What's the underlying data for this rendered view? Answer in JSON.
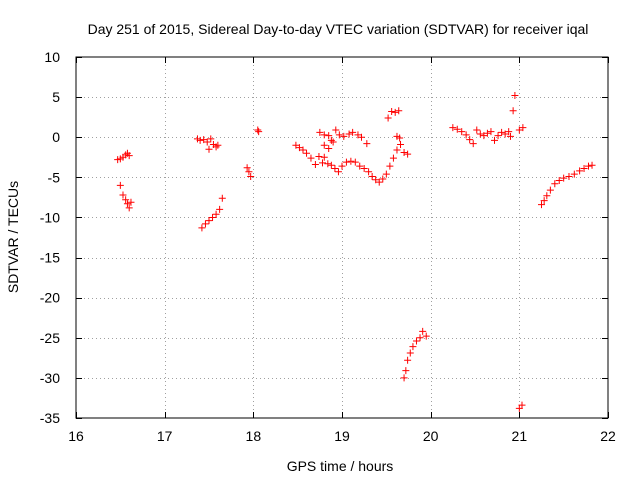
{
  "chart_data": {
    "type": "scatter",
    "title": "Day 251 of 2015, Sidereal Day-to-day VTEC variation (SDTVAR) for receiver iqal",
    "xlabel": "GPS time / hours",
    "ylabel": "SDTVAR / TECUs",
    "xlim": [
      16,
      22
    ],
    "ylim": [
      -35,
      10
    ],
    "xticks": [
      16,
      17,
      18,
      19,
      20,
      21,
      22
    ],
    "xtick_labels": [
      "16",
      "17",
      "18",
      "19",
      "20",
      "21",
      "22"
    ],
    "yticks": [
      10,
      5,
      0,
      -5,
      -10,
      -15,
      -20,
      -25,
      -30,
      -35
    ],
    "ytick_labels": [
      "10",
      "5",
      "0",
      "-5",
      "-10",
      "-15",
      "-20",
      "-25",
      "-30",
      "-35"
    ],
    "grid": true,
    "marker": "+",
    "color": "#ff0000",
    "series": [
      {
        "name": "iqal",
        "points": [
          [
            16.47,
            -2.8
          ],
          [
            16.5,
            -2.7
          ],
          [
            16.53,
            -2.5
          ],
          [
            16.56,
            -2.2
          ],
          [
            16.58,
            -2.0
          ],
          [
            16.6,
            -2.3
          ],
          [
            16.5,
            -6.0
          ],
          [
            16.53,
            -7.2
          ],
          [
            16.56,
            -7.8
          ],
          [
            16.58,
            -8.3
          ],
          [
            16.6,
            -8.8
          ],
          [
            16.62,
            -8.1
          ],
          [
            17.37,
            -0.2
          ],
          [
            17.4,
            -0.4
          ],
          [
            17.44,
            -0.3
          ],
          [
            17.48,
            -0.6
          ],
          [
            17.5,
            -1.5
          ],
          [
            17.52,
            -0.2
          ],
          [
            17.55,
            -0.9
          ],
          [
            17.58,
            -1.2
          ],
          [
            17.6,
            -1.0
          ],
          [
            17.42,
            -11.3
          ],
          [
            17.46,
            -10.8
          ],
          [
            17.5,
            -10.4
          ],
          [
            17.54,
            -10.0
          ],
          [
            17.58,
            -9.6
          ],
          [
            17.62,
            -9.0
          ],
          [
            17.65,
            -7.6
          ],
          [
            17.93,
            -3.8
          ],
          [
            17.95,
            -4.3
          ],
          [
            17.97,
            -4.9
          ],
          [
            18.05,
            0.9
          ],
          [
            18.06,
            0.7
          ],
          [
            18.48,
            -1.0
          ],
          [
            18.52,
            -1.3
          ],
          [
            18.56,
            -1.6
          ],
          [
            18.6,
            -2.0
          ],
          [
            18.65,
            -2.6
          ],
          [
            18.7,
            -3.4
          ],
          [
            18.74,
            -2.4
          ],
          [
            18.78,
            -3.2
          ],
          [
            18.8,
            -2.5
          ],
          [
            18.84,
            -3.3
          ],
          [
            18.88,
            -3.5
          ],
          [
            18.92,
            -3.9
          ],
          [
            18.96,
            -4.3
          ],
          [
            19.0,
            -3.6
          ],
          [
            19.05,
            -3.1
          ],
          [
            19.1,
            -3.0
          ],
          [
            19.15,
            -3.1
          ],
          [
            19.2,
            -3.6
          ],
          [
            19.25,
            -3.9
          ],
          [
            19.3,
            -4.3
          ],
          [
            19.34,
            -4.9
          ],
          [
            19.38,
            -5.3
          ],
          [
            19.42,
            -5.6
          ],
          [
            19.46,
            -5.2
          ],
          [
            19.5,
            -4.6
          ],
          [
            19.54,
            -3.6
          ],
          [
            19.58,
            -2.6
          ],
          [
            19.62,
            -1.6
          ],
          [
            19.66,
            -0.9
          ],
          [
            19.7,
            -1.9
          ],
          [
            19.74,
            -2.1
          ],
          [
            18.75,
            0.6
          ],
          [
            18.8,
            0.3
          ],
          [
            18.85,
            0.2
          ],
          [
            18.88,
            -0.4
          ],
          [
            18.93,
            0.9
          ],
          [
            18.97,
            0.3
          ],
          [
            19.02,
            0.1
          ],
          [
            19.08,
            0.4
          ],
          [
            19.12,
            0.6
          ],
          [
            19.18,
            0.3
          ],
          [
            19.22,
            0.0
          ],
          [
            19.28,
            -0.8
          ],
          [
            18.8,
            -1.0
          ],
          [
            18.85,
            -1.4
          ],
          [
            18.9,
            -0.6
          ],
          [
            19.52,
            2.4
          ],
          [
            19.56,
            3.2
          ],
          [
            19.6,
            3.1
          ],
          [
            19.64,
            3.3
          ],
          [
            19.62,
            0.1
          ],
          [
            19.65,
            -0.1
          ],
          [
            19.7,
            -30.0
          ],
          [
            19.72,
            -29.1
          ],
          [
            19.74,
            -27.8
          ],
          [
            19.77,
            -26.9
          ],
          [
            19.8,
            -26.1
          ],
          [
            19.84,
            -25.4
          ],
          [
            19.88,
            -25.0
          ],
          [
            19.91,
            -24.2
          ],
          [
            19.95,
            -24.8
          ],
          [
            20.25,
            1.2
          ],
          [
            20.3,
            1.0
          ],
          [
            20.35,
            0.7
          ],
          [
            20.4,
            0.3
          ],
          [
            20.44,
            -0.3
          ],
          [
            20.48,
            -0.8
          ],
          [
            20.52,
            0.9
          ],
          [
            20.56,
            0.4
          ],
          [
            20.6,
            0.2
          ],
          [
            20.64,
            0.5
          ],
          [
            20.68,
            0.7
          ],
          [
            20.72,
            -0.4
          ],
          [
            20.76,
            0.2
          ],
          [
            20.8,
            0.6
          ],
          [
            20.84,
            0.4
          ],
          [
            20.88,
            0.7
          ],
          [
            20.9,
            0.1
          ],
          [
            20.93,
            3.3
          ],
          [
            20.95,
            5.2
          ],
          [
            21.0,
            0.9
          ],
          [
            21.04,
            1.2
          ],
          [
            21.0,
            -33.8
          ],
          [
            21.03,
            -33.4
          ],
          [
            21.25,
            -8.4
          ],
          [
            21.28,
            -7.9
          ],
          [
            21.31,
            -7.3
          ],
          [
            21.35,
            -6.6
          ],
          [
            21.4,
            -5.8
          ],
          [
            21.45,
            -5.4
          ],
          [
            21.5,
            -5.1
          ],
          [
            21.56,
            -4.9
          ],
          [
            21.62,
            -4.6
          ],
          [
            21.68,
            -4.2
          ],
          [
            21.73,
            -3.9
          ],
          [
            21.78,
            -3.6
          ],
          [
            21.82,
            -3.5
          ]
        ]
      }
    ]
  }
}
